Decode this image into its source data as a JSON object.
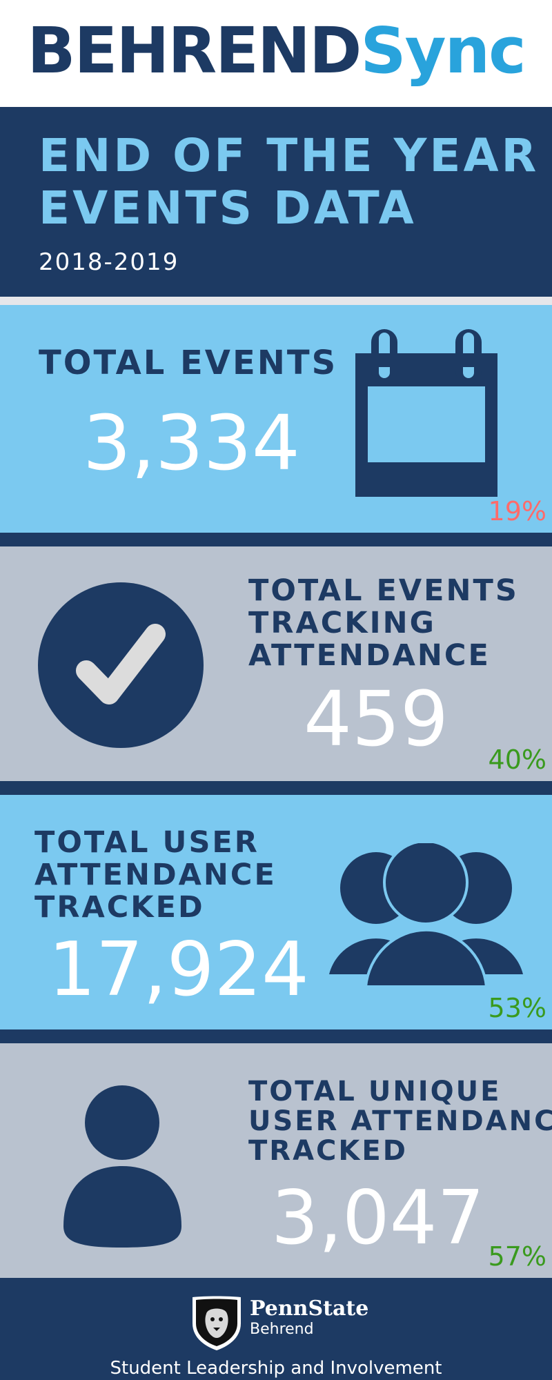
{
  "colors": {
    "navy": "#1d3a63",
    "sky": "#7bc9f0",
    "gray": "#b9c2cf",
    "white": "#ffffff",
    "red": "#ff6b6b",
    "green": "#3a9a1e",
    "divider": "#e6e6ea"
  },
  "header": {
    "brand_a": "BEHREND",
    "brand_b": "Sync",
    "brand_a_color": "#1d3a63",
    "brand_b_color": "#29a3dc"
  },
  "title": {
    "line1": "END OF THE YEAR",
    "line2": "EVENTS DATA",
    "years": "2018-2019"
  },
  "stats": [
    {
      "heading_lines": [
        "TOTAL EVENTS"
      ],
      "value": "3,334",
      "percent": "19%",
      "percent_color": "#ff6b6b",
      "icon": "calendar-icon"
    },
    {
      "heading_lines": [
        "TOTAL EVENTS",
        "TRACKING",
        "ATTENDANCE"
      ],
      "value": "459",
      "percent": "40%",
      "percent_color": "#3a9a1e",
      "icon": "checkmark-circle-icon"
    },
    {
      "heading_lines": [
        "TOTAL USER",
        "ATTENDANCE",
        "TRACKED"
      ],
      "value": "17,924",
      "percent": "53%",
      "percent_color": "#3a9a1e",
      "icon": "users-group-icon"
    },
    {
      "heading_lines": [
        "TOTAL UNIQUE",
        "USER ATTENDANCE",
        "TRACKED"
      ],
      "value": "3,047",
      "percent": "57%",
      "percent_color": "#3a9a1e",
      "icon": "single-user-icon"
    }
  ],
  "footer": {
    "logo_line1": "PennState",
    "logo_line2": "Behrend",
    "office": "Student Leadership and Involvement",
    "icon": "nittany-lion-shield-icon"
  }
}
